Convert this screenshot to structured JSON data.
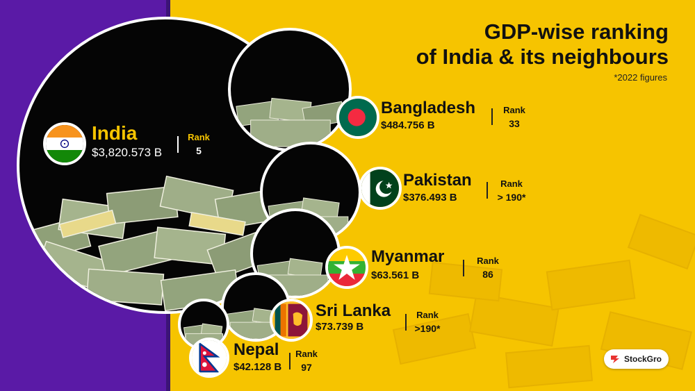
{
  "header": {
    "title_line1": "GDP-wise ranking",
    "title_line2": "of India & its neighbours",
    "note": "*2022 figures"
  },
  "countries": [
    {
      "name": "India",
      "gdp": "$3,820.573 B",
      "rank_label": "Rank",
      "rank": "5"
    },
    {
      "name": "Bangladesh",
      "gdp": "$484.756 B",
      "rank_label": "Rank",
      "rank": "33"
    },
    {
      "name": "Pakistan",
      "gdp": "$376.493 B",
      "rank_label": "Rank",
      "rank": "> 190*"
    },
    {
      "name": "Myanmar",
      "gdp": "$63.561 B",
      "rank_label": "Rank",
      "rank": "86"
    },
    {
      "name": "Sri Lanka",
      "gdp": "$73.739 B",
      "rank_label": "Rank",
      "rank": ">190*"
    },
    {
      "name": "Nepal",
      "gdp": "$42.128 B",
      "rank_label": "Rank",
      "rank": "97"
    }
  ],
  "brand": {
    "logo": "StockGro"
  },
  "colors": {
    "purple": "#5a1aa6",
    "yellow": "#f6c400",
    "black": "#050505",
    "money_green": "#8ea07a"
  }
}
